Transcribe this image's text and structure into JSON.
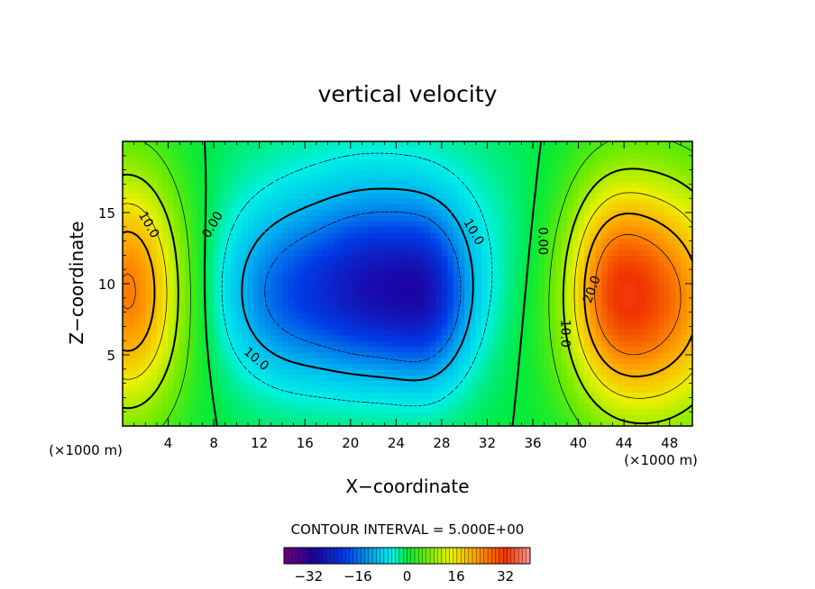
{
  "chart_data": {
    "type": "heatmap",
    "title": "vertical velocity",
    "xlabel": "X−coordinate",
    "ylabel": "Z−coordinate",
    "x_unit_left": "(×1000 m)",
    "x_unit_right": "(×1000 m)",
    "xlim": [
      0,
      50
    ],
    "ylim": [
      0,
      20
    ],
    "xticks": [
      4,
      8,
      12,
      16,
      20,
      24,
      28,
      32,
      36,
      40,
      44,
      48
    ],
    "yticks": [
      5,
      10,
      15
    ],
    "contour_interval_text": "CONTOUR INTERVAL = 5.000E+00",
    "contour_labels": [
      {
        "text": "10.0",
        "x": 2.0,
        "z": 14.0,
        "rot": 60
      },
      {
        "text": "0.00",
        "x": 8.2,
        "z": 14.0,
        "rot": -60
      },
      {
        "text": "10.0",
        "x": 11.5,
        "z": 4.5,
        "rot": 40
      },
      {
        "text": "10.0",
        "x": 30.5,
        "z": 13.5,
        "rot": 60
      },
      {
        "text": "0.00",
        "x": 36.5,
        "z": 13.0,
        "rot": 90
      },
      {
        "text": "20.0",
        "x": 41.5,
        "z": 9.5,
        "rot": -70
      },
      {
        "text": "10.0",
        "x": 38.5,
        "z": 6.5,
        "rot": 90
      }
    ],
    "field": {
      "background": 0,
      "blobs": [
        {
          "x": 0.5,
          "z": 9.5,
          "sx": 3.5,
          "sz": 6.0,
          "amp": 26
        },
        {
          "x": 46.5,
          "z": 9.0,
          "sx": 5.0,
          "sz": 6.0,
          "amp": 28
        },
        {
          "x": 42.5,
          "z": 10.0,
          "sx": 2.5,
          "sz": 5.0,
          "amp": 10
        },
        {
          "x": 22.0,
          "z": 9.5,
          "sx": 3.5,
          "sz": 4.0,
          "amp": -17
        },
        {
          "x": 27.0,
          "z": 9.0,
          "sx": 2.5,
          "sz": 4.0,
          "amp": -15
        },
        {
          "x": 14.5,
          "z": 9.0,
          "sx": 4.0,
          "sz": 4.0,
          "amp": -12
        },
        {
          "x": 22.0,
          "z": 12.0,
          "sx": 9.0,
          "sz": 6.0,
          "amp": -8
        }
      ]
    },
    "colorbar": {
      "min": -40,
      "max": 40,
      "ticks": [
        -32,
        -16,
        0,
        16,
        32
      ]
    }
  }
}
